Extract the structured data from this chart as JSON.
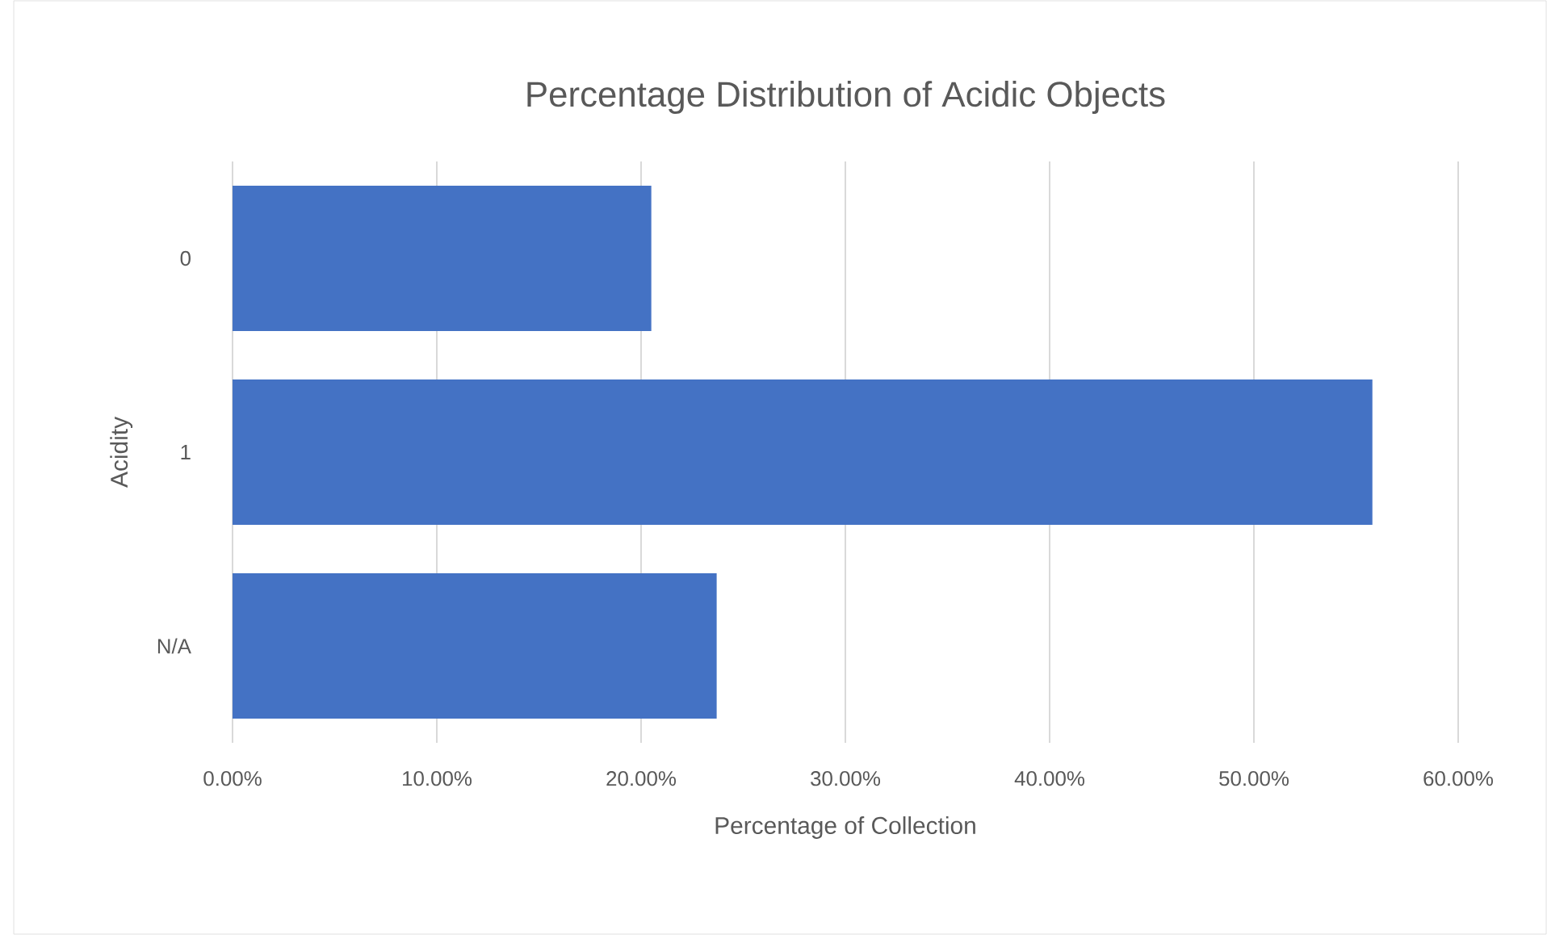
{
  "chart_data": {
    "type": "bar",
    "orientation": "horizontal",
    "title": "Percentage Distribution of Acidic Objects",
    "xlabel": "Percentage of Collection",
    "ylabel": "Acidity",
    "categories": [
      "0",
      "1",
      "N/A"
    ],
    "values": [
      20.5,
      55.8,
      23.7
    ],
    "color": "#4472c4",
    "xlim": [
      0,
      60
    ],
    "xticks": [
      {
        "value": 0,
        "label": "0.00%"
      },
      {
        "value": 10,
        "label": "10.00%"
      },
      {
        "value": 20,
        "label": "20.00%"
      },
      {
        "value": 30,
        "label": "30.00%"
      },
      {
        "value": 40,
        "label": "40.00%"
      },
      {
        "value": 50,
        "label": "50.00%"
      },
      {
        "value": 60,
        "label": "60.00%"
      }
    ],
    "grid": "x"
  }
}
